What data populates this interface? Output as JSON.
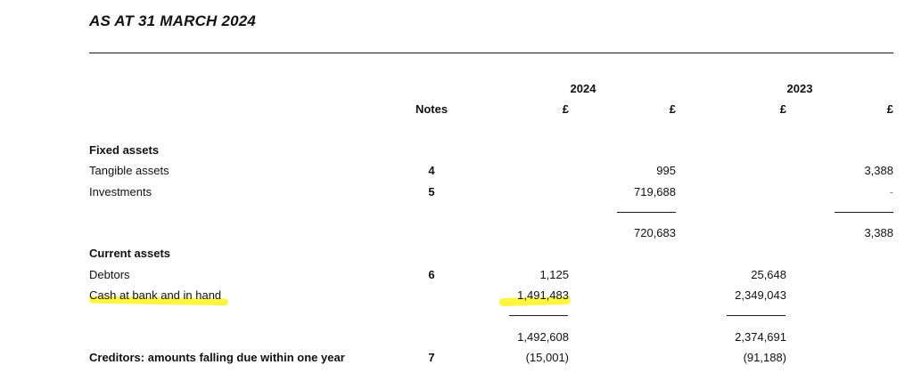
{
  "document": {
    "title": "AS AT 31 MARCH 2024"
  },
  "header": {
    "year_current": "2024",
    "year_prior": "2023",
    "notes_label": "Notes",
    "currency_a": "£",
    "currency_b": "£",
    "currency_c": "£",
    "currency_d": "£"
  },
  "fixed_assets": {
    "heading": "Fixed assets",
    "rows": [
      {
        "label": "Tangible assets",
        "note": "4",
        "current_total": "995",
        "prior_total": "3,388"
      },
      {
        "label": "Investments",
        "note": "5",
        "current_total": "719,688",
        "prior_total": "-"
      }
    ],
    "subtotal_current": "720,683",
    "subtotal_prior": "3,388"
  },
  "current_assets": {
    "heading": "Current assets",
    "rows": [
      {
        "label": "Debtors",
        "note": "6",
        "current_detail": "1,125",
        "prior_detail": "25,648"
      },
      {
        "label": "Cash at bank and in hand",
        "note": "",
        "current_detail": "1,491,483",
        "prior_detail": "2,349,043"
      }
    ],
    "subtotal_current": "1,492,608",
    "subtotal_prior": "2,374,691"
  },
  "creditors": {
    "label": "Creditors: amounts falling due within one year",
    "note": "7",
    "current_detail": "(15,001)",
    "prior_detail": "(91,188)"
  },
  "highlight": {
    "color": "#fff200"
  }
}
